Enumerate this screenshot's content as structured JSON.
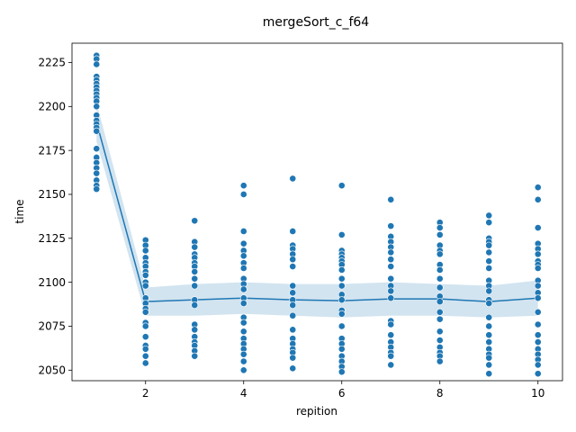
{
  "chart_data": {
    "type": "scatter",
    "title": "mergeSort_c_f64",
    "xlabel": "repition",
    "ylabel": "time",
    "xlim": [
      0.5,
      10.5
    ],
    "ylim": [
      2044,
      2236
    ],
    "xticks": [
      2,
      4,
      6,
      8,
      10
    ],
    "yticks": [
      2050,
      2075,
      2100,
      2125,
      2150,
      2175,
      2200,
      2225
    ],
    "grid": false,
    "colors": {
      "points": "#1f77b4",
      "line": "#1f77b4",
      "band": "#1f77b4"
    },
    "points": [
      {
        "x": 1,
        "y": [
          2229,
          2227,
          2224,
          2217,
          2215,
          2213,
          2211,
          2209,
          2207,
          2205,
          2203,
          2200,
          2195,
          2192,
          2190,
          2188,
          2186,
          2176,
          2171,
          2168,
          2165,
          2162,
          2158,
          2155,
          2153
        ]
      },
      {
        "x": 2,
        "y": [
          2124,
          2121,
          2118,
          2114,
          2111,
          2109,
          2106,
          2104,
          2100,
          2098,
          2091,
          2088,
          2085,
          2083,
          2077,
          2075,
          2069,
          2064,
          2062,
          2058,
          2054
        ]
      },
      {
        "x": 3,
        "y": [
          2135,
          2123,
          2120,
          2116,
          2114,
          2111,
          2109,
          2106,
          2102,
          2098,
          2090,
          2087,
          2076,
          2073,
          2069,
          2066,
          2064,
          2061,
          2058
        ]
      },
      {
        "x": 4,
        "y": [
          2155,
          2150,
          2129,
          2122,
          2118,
          2115,
          2111,
          2108,
          2102,
          2099,
          2096,
          2091,
          2088,
          2080,
          2077,
          2072,
          2068,
          2065,
          2062,
          2059,
          2055,
          2050
        ]
      },
      {
        "x": 5,
        "y": [
          2159,
          2129,
          2121,
          2119,
          2116,
          2113,
          2109,
          2098,
          2094,
          2090,
          2087,
          2081,
          2073,
          2068,
          2065,
          2062,
          2060,
          2057,
          2051
        ]
      },
      {
        "x": 6,
        "y": [
          2155,
          2127,
          2118,
          2116,
          2114,
          2112,
          2110,
          2107,
          2102,
          2098,
          2093,
          2090,
          2084,
          2082,
          2075,
          2068,
          2065,
          2062,
          2058,
          2055,
          2052,
          2049
        ]
      },
      {
        "x": 7,
        "y": [
          2147,
          2132,
          2126,
          2123,
          2120,
          2117,
          2113,
          2109,
          2102,
          2098,
          2095,
          2091,
          2078,
          2076,
          2070,
          2066,
          2063,
          2060,
          2058,
          2053
        ]
      },
      {
        "x": 8,
        "y": [
          2134,
          2131,
          2127,
          2121,
          2118,
          2116,
          2110,
          2107,
          2102,
          2097,
          2092,
          2089,
          2083,
          2079,
          2072,
          2067,
          2063,
          2060,
          2058,
          2055
        ]
      },
      {
        "x": 9,
        "y": [
          2138,
          2134,
          2125,
          2123,
          2121,
          2117,
          2112,
          2108,
          2101,
          2098,
          2095,
          2090,
          2088,
          2080,
          2075,
          2070,
          2066,
          2062,
          2059,
          2057,
          2053,
          2048
        ]
      },
      {
        "x": 10,
        "y": [
          2154,
          2147,
          2131,
          2122,
          2119,
          2116,
          2112,
          2110,
          2108,
          2101,
          2098,
          2094,
          2091,
          2083,
          2076,
          2070,
          2066,
          2062,
          2059,
          2056,
          2053,
          2048
        ]
      }
    ],
    "mean_line": {
      "x": [
        1,
        2,
        3,
        4,
        5,
        6,
        7,
        8,
        9,
        10
      ],
      "y": [
        2191,
        2089,
        2090,
        2091,
        2090,
        2089.5,
        2090.5,
        2090.5,
        2089,
        2091
      ]
    },
    "confidence_band": {
      "x": [
        1,
        2,
        3,
        4,
        5,
        6,
        7,
        8,
        9,
        10
      ],
      "lower": [
        2180,
        2081,
        2081,
        2082,
        2081,
        2080,
        2081,
        2081,
        2080,
        2081
      ],
      "upper": [
        2202,
        2097,
        2099,
        2100,
        2099,
        2099,
        2100,
        2099,
        2098,
        2101
      ]
    }
  }
}
